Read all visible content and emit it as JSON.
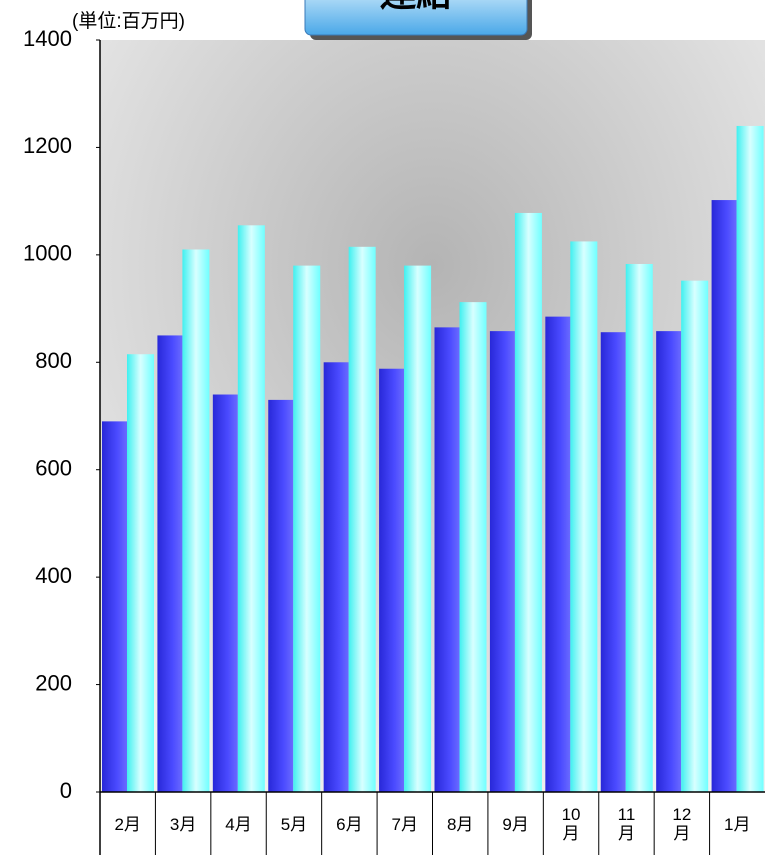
{
  "chart_data": {
    "type": "bar",
    "title": "連結",
    "unit_label": "(単位:百万円)",
    "categories": [
      "2月",
      "3月",
      "4月",
      "5月",
      "6月",
      "7月",
      "8月",
      "9月",
      "10\n月",
      "11\n月",
      "12\n月",
      "1月"
    ],
    "series": [
      {
        "color": "#3c3cf0",
        "values": [
          690,
          850,
          740,
          730,
          800,
          788,
          865,
          858,
          885,
          856,
          858,
          1102
        ]
      },
      {
        "color": "#8cffff",
        "values": [
          815,
          1010,
          1055,
          980,
          1015,
          980,
          912,
          1078,
          1025,
          983,
          952,
          1240
        ]
      }
    ],
    "ylim": [
      0,
      1400
    ],
    "yticks": [
      0,
      200,
      400,
      600,
      800,
      1000,
      1200,
      1400
    ]
  }
}
